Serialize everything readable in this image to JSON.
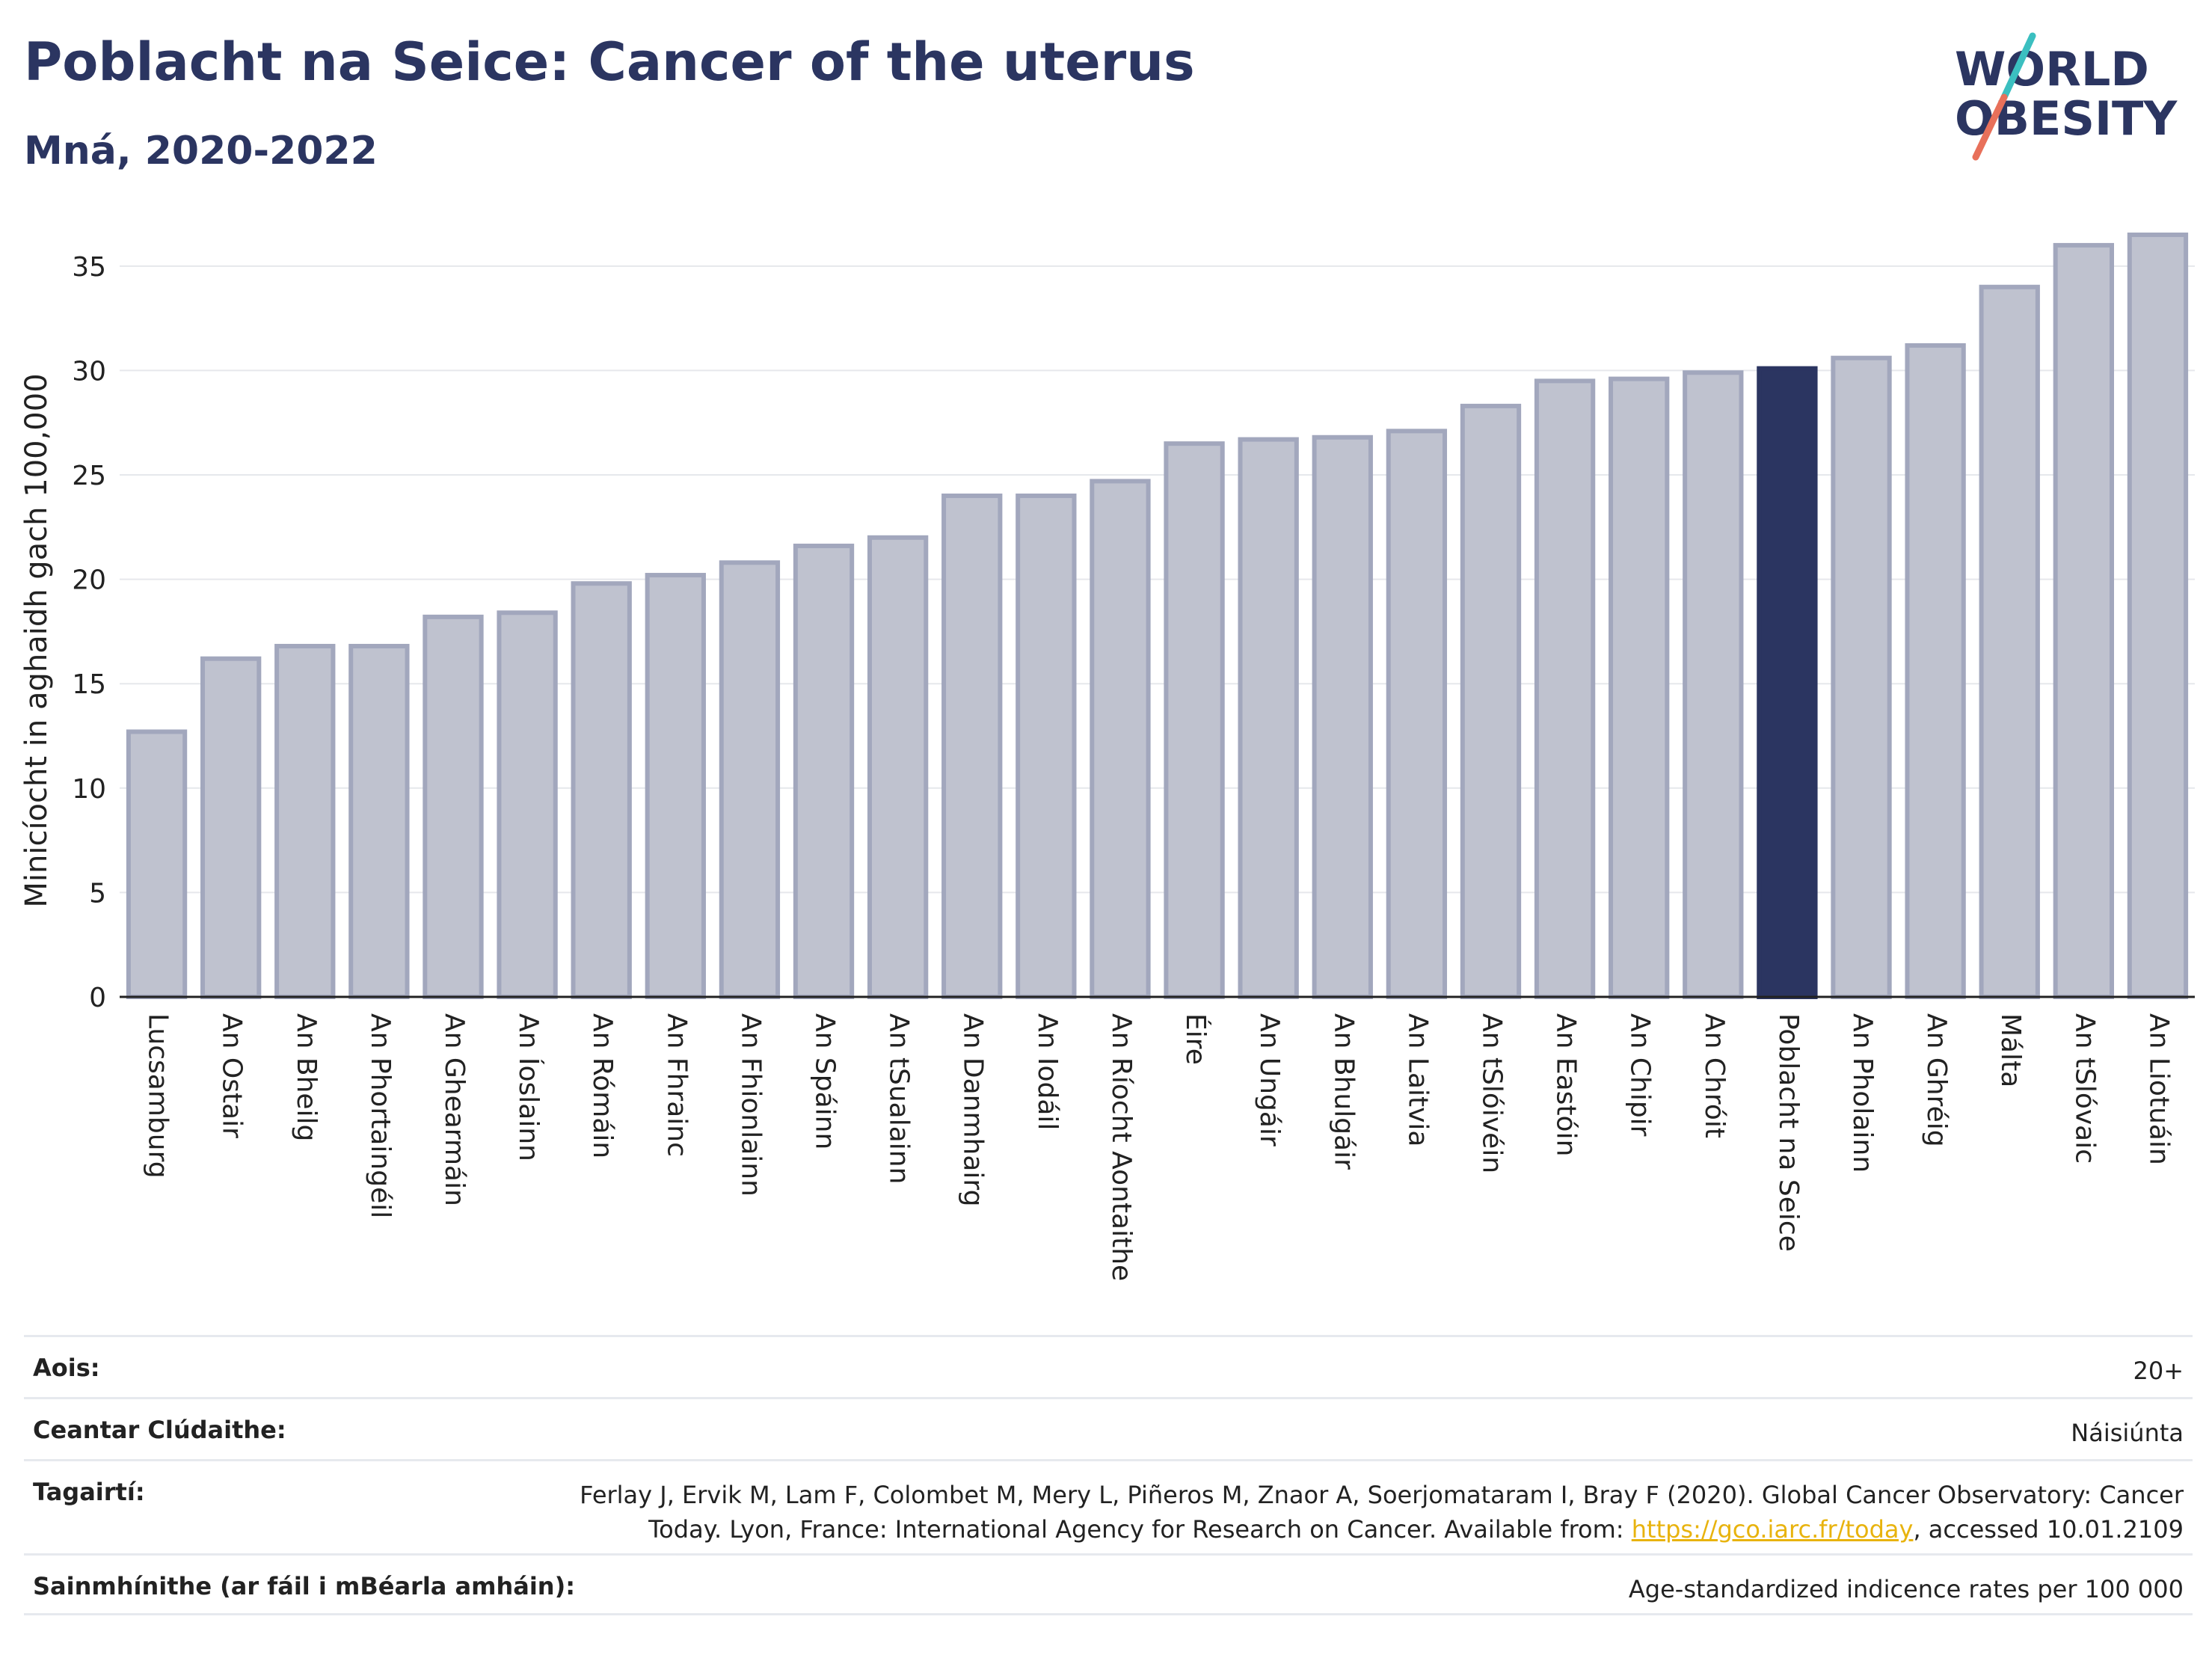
{
  "header": {
    "title": "Poblacht na Seice: Cancer of the uterus",
    "subtitle": "Mná, 2020-2022"
  },
  "logo": {
    "line1": "WORLD",
    "line2": "OBESITY"
  },
  "colors": {
    "highlight": "#2b3561",
    "bar_fill": "#bfc2cf",
    "bar_stroke": "#a2a7bd",
    "grid": "#e6e8ec",
    "logo_teal": "#3bbfc0",
    "logo_coral": "#e8705a"
  },
  "chart_data": {
    "type": "bar",
    "ylabel": "Minicíocht in aghaidh gach 100,000",
    "ylim": [
      0,
      37
    ],
    "yticks": [
      0,
      5,
      10,
      15,
      20,
      25,
      30,
      35
    ],
    "grid": true,
    "highlight": "Poblacht na Seice",
    "categories": [
      "Lucsamburg",
      "An Ostair",
      "An Bheilg",
      "An Phortaingéil",
      "An Ghearmáin",
      "An Íoslainn",
      "An Rómáin",
      "An Fhrainc",
      "An Fhionlainn",
      "An Spáinn",
      "An tSualainn",
      "An Danmhairg",
      "An Iodáil",
      "An Ríocht Aontaithe",
      "Éire",
      "An Ungáir",
      "An Bhulgáir",
      "An Laitvia",
      "An tSlóivéin",
      "An Eastóin",
      "An Chipir",
      "An Chróit",
      "Poblacht na Seice",
      "An Pholainn",
      "An Ghréig",
      "Málta",
      "An tSlóvaic",
      "An Liotuáin"
    ],
    "values": [
      12.7,
      16.2,
      16.8,
      16.8,
      18.2,
      18.4,
      19.8,
      20.2,
      20.8,
      21.6,
      22.0,
      24.0,
      24.0,
      24.7,
      26.5,
      26.7,
      26.8,
      27.1,
      28.3,
      29.5,
      29.6,
      29.9,
      30.1,
      30.6,
      31.2,
      34.0,
      36.0,
      36.5
    ]
  },
  "info": {
    "age_label": "Aois:",
    "age_value": "20+",
    "coverage_label": "Ceantar Clúdaithe:",
    "coverage_value": "Náisiúnta",
    "refs_label": "Tagairtí:",
    "refs_text_1": "Ferlay J, Ervik M, Lam F, Colombet M, Mery L, Piñeros M, Znaor A, Soerjomataram I, Bray F (2020). Global Cancer Observatory: Cancer Today. Lyon, France: International Agency for Research on Cancer. Available from: ",
    "refs_link": "https://gco.iarc.fr/today",
    "refs_text_2": ", accessed 10.01.2109",
    "defs_label": "Sainmhínithe (ar fáil i mBéarla amháin):",
    "defs_value": "Age-standardized indicence rates per 100 000"
  }
}
